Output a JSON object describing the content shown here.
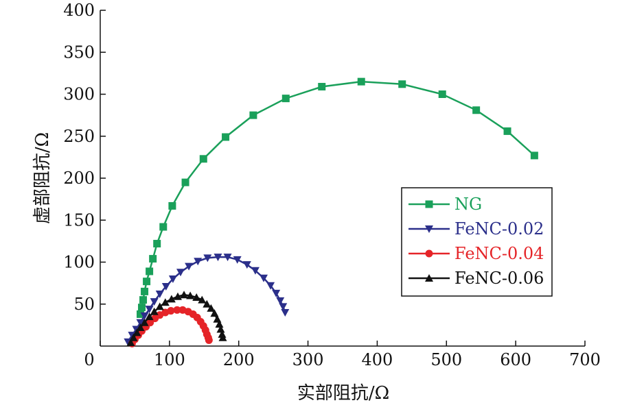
{
  "chart_data": {
    "type": "line",
    "title": "",
    "xlabel": "实部阻抗/Ω",
    "ylabel": "虚部阻抗/Ω",
    "xlim": [
      0,
      700
    ],
    "ylim": [
      0,
      400
    ],
    "xticks": [
      0,
      100,
      200,
      300,
      400,
      500,
      600,
      700
    ],
    "yticks": [
      50,
      100,
      150,
      200,
      250,
      300,
      350,
      400
    ],
    "grid": false,
    "legend_position": "center-right",
    "series": [
      {
        "name": "NG",
        "color": "#1aa05a",
        "marker": "square",
        "points": [
          [
            58,
            38
          ],
          [
            60,
            46
          ],
          [
            62,
            55
          ],
          [
            64,
            65
          ],
          [
            67,
            77
          ],
          [
            71,
            89
          ],
          [
            76,
            104
          ],
          [
            82,
            122
          ],
          [
            91,
            142
          ],
          [
            104,
            167
          ],
          [
            123,
            195
          ],
          [
            149,
            223
          ],
          [
            181,
            249
          ],
          [
            221,
            275
          ],
          [
            268,
            295
          ],
          [
            320,
            309
          ],
          [
            377,
            315
          ],
          [
            436,
            312
          ],
          [
            494,
            300
          ],
          [
            543,
            281
          ],
          [
            588,
            256
          ],
          [
            627,
            227
          ]
        ]
      },
      {
        "name": "FeNC-0.02",
        "color": "#2b2f8a",
        "marker": "triangle-down",
        "points": [
          [
            40,
            5
          ],
          [
            46,
            13
          ],
          [
            52,
            20
          ],
          [
            58,
            28
          ],
          [
            64,
            36
          ],
          [
            71,
            44
          ],
          [
            78,
            53
          ],
          [
            86,
            62
          ],
          [
            95,
            71
          ],
          [
            105,
            80
          ],
          [
            116,
            88
          ],
          [
            128,
            95
          ],
          [
            141,
            101
          ],
          [
            155,
            105
          ],
          [
            170,
            106
          ],
          [
            184,
            106
          ],
          [
            198,
            103
          ],
          [
            212,
            97
          ],
          [
            224,
            90
          ],
          [
            236,
            81
          ],
          [
            246,
            72
          ],
          [
            254,
            63
          ],
          [
            260,
            54
          ],
          [
            264,
            47
          ],
          [
            267,
            40
          ]
        ]
      },
      {
        "name": "FeNC-0.04",
        "color": "#e52428",
        "marker": "circle",
        "points": [
          [
            46,
            3
          ],
          [
            50,
            8
          ],
          [
            55,
            13
          ],
          [
            60,
            18
          ],
          [
            66,
            23
          ],
          [
            72,
            28
          ],
          [
            79,
            33
          ],
          [
            86,
            37
          ],
          [
            94,
            40
          ],
          [
            102,
            42
          ],
          [
            111,
            43
          ],
          [
            119,
            43
          ],
          [
            127,
            41
          ],
          [
            134,
            38
          ],
          [
            140,
            34
          ],
          [
            145,
            29
          ],
          [
            149,
            24
          ],
          [
            152,
            19
          ],
          [
            154,
            14
          ],
          [
            156,
            10
          ],
          [
            157,
            7
          ]
        ]
      },
      {
        "name": "FeNC-0.06",
        "color": "#111111",
        "marker": "triangle-up",
        "points": [
          [
            44,
            4
          ],
          [
            48,
            10
          ],
          [
            53,
            16
          ],
          [
            58,
            22
          ],
          [
            64,
            28
          ],
          [
            71,
            35
          ],
          [
            78,
            41
          ],
          [
            86,
            47
          ],
          [
            94,
            52
          ],
          [
            103,
            56
          ],
          [
            112,
            59
          ],
          [
            121,
            61
          ],
          [
            130,
            60
          ],
          [
            139,
            58
          ],
          [
            147,
            55
          ],
          [
            154,
            50
          ],
          [
            160,
            45
          ],
          [
            165,
            39
          ],
          [
            169,
            32
          ],
          [
            172,
            26
          ],
          [
            174,
            20
          ],
          [
            176,
            14
          ],
          [
            177,
            10
          ]
        ]
      }
    ]
  }
}
